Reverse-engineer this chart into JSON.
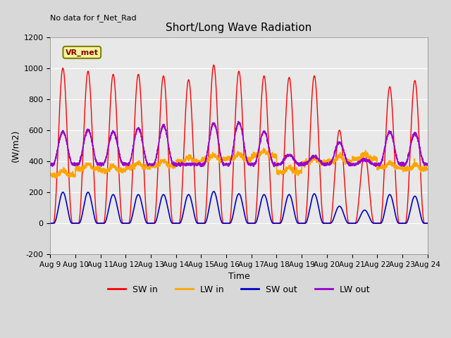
{
  "title": "Short/Long Wave Radiation",
  "xlabel": "Time",
  "ylabel": "(W/m2)",
  "ylim": [
    -200,
    1200
  ],
  "xtick_labels": [
    "Aug 9",
    "Aug 10",
    "Aug 11",
    "Aug 12",
    "Aug 13",
    "Aug 14",
    "Aug 15",
    "Aug 16",
    "Aug 17",
    "Aug 18",
    "Aug 19",
    "Aug 20",
    "Aug 21",
    "Aug 22",
    "Aug 23",
    "Aug 24"
  ],
  "ytick_values": [
    -200,
    0,
    200,
    400,
    600,
    800,
    1000,
    1200
  ],
  "annotation_text": "No data for f_Net_Rad",
  "legend_label_text": "VR_met",
  "sw_in_color": "#ff0000",
  "lw_in_color": "#ffa500",
  "sw_out_color": "#0000cc",
  "lw_out_color": "#9900cc",
  "n_days": 15,
  "sw_in_peaks": [
    1000,
    980,
    960,
    960,
    950,
    925,
    1020,
    980,
    950,
    940,
    950,
    600,
    450,
    880,
    920
  ],
  "lw_in_values": [
    310.0,
    350.0,
    340.0,
    360.0,
    370.0,
    395.0,
    410.0,
    415.0,
    435.0,
    330.0,
    390.0,
    400.0,
    415.0,
    360.0,
    350.0
  ],
  "sw_out_peaks": [
    200,
    200,
    185,
    185,
    185,
    185,
    205,
    190,
    185,
    185,
    190,
    110,
    85,
    185,
    175
  ],
  "lw_out_peaks": [
    590,
    600,
    590,
    610,
    630,
    380,
    645,
    650,
    590,
    440,
    430,
    520,
    410,
    590,
    580
  ],
  "lw_out_base": 380.0
}
